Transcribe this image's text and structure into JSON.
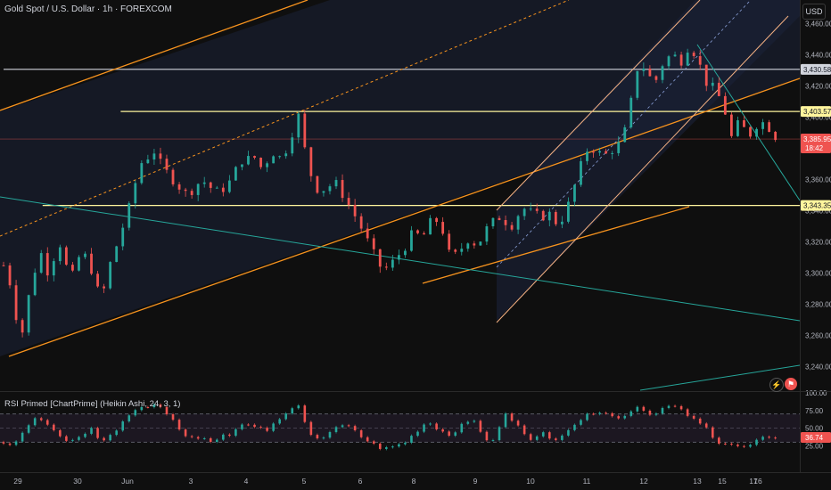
{
  "header": {
    "title": "Gold Spot / U.S. Dollar · 1h · FOREXCOM",
    "currency": "USD"
  },
  "rsi_header": {
    "title": "RSI Primed [ChartPrime] (Heikin Ashi, 24, 3, 1)"
  },
  "colors": {
    "background": "#0f0f0f",
    "up": "#26a69a",
    "down": "#ef5350",
    "orange": "#f7931e",
    "light_orange": "#f4b183",
    "yellow_line": "#fff59d",
    "white_line": "#d1d4dc",
    "teal_line": "#26a69a",
    "channel_fill": "#1b2238",
    "price_line": "#ef5350"
  },
  "icons": [
    "lightning-icon",
    "flag-icon"
  ],
  "chart_data": [
    {
      "type": "candlestick",
      "ylim": [
        3225,
        3475
      ],
      "y_ticks": [
        "3,460.00",
        "3,440.00",
        "3,420.00",
        "3,400.00",
        "3,380.00",
        "3,360.00",
        "3,340.00",
        "3,320.00",
        "3,300.00",
        "3,280.00",
        "3,260.00",
        "3,240.00"
      ],
      "x_ticks": [
        "29",
        "30",
        "Jun",
        "3",
        "4",
        "5",
        "6",
        "8",
        "9",
        "10",
        "11",
        "12",
        "13",
        "15",
        "16",
        "17"
      ],
      "price_labels": [
        {
          "text": "3,430.58",
          "value": 3430.58,
          "style": "white"
        },
        {
          "text": "3,403.57",
          "value": 3403.57,
          "style": "yellow"
        },
        {
          "text": "3,385.95",
          "sub": "18:42",
          "value": 3385.95,
          "style": "red"
        },
        {
          "text": "3,343.35",
          "value": 3343.35,
          "style": "yellow"
        }
      ],
      "horizontal_levels": [
        {
          "value": 3430.58,
          "color": "white",
          "from_index": 0
        },
        {
          "value": 3403.57,
          "color": "yellow",
          "from_index": 84
        },
        {
          "value": 3343.35,
          "color": "yellow",
          "from_index": 28
        }
      ],
      "close_path": [
        [
          0,
          3305
        ],
        [
          6,
          3290
        ],
        [
          12,
          3255
        ],
        [
          18,
          3285
        ],
        [
          26,
          3315
        ],
        [
          32,
          3300
        ],
        [
          40,
          3320
        ],
        [
          48,
          3295
        ],
        [
          56,
          3315
        ],
        [
          62,
          3305
        ],
        [
          70,
          3282
        ],
        [
          76,
          3305
        ],
        [
          82,
          3320
        ],
        [
          90,
          3342
        ],
        [
          98,
          3370
        ],
        [
          108,
          3378
        ],
        [
          114,
          3368
        ],
        [
          124,
          3357
        ],
        [
          132,
          3350
        ],
        [
          142,
          3360
        ],
        [
          152,
          3352
        ],
        [
          160,
          3355
        ],
        [
          170,
          3372
        ],
        [
          180,
          3374
        ],
        [
          186,
          3366
        ],
        [
          192,
          3378
        ],
        [
          200,
          3373
        ],
        [
          212,
          3402
        ],
        [
          218,
          3368
        ],
        [
          226,
          3352
        ],
        [
          238,
          3358
        ],
        [
          250,
          3340
        ],
        [
          256,
          3330
        ],
        [
          264,
          3315
        ],
        [
          272,
          3301
        ],
        [
          280,
          3308
        ],
        [
          288,
          3317
        ],
        [
          294,
          3327
        ],
        [
          300,
          3322
        ],
        [
          308,
          3336
        ],
        [
          314,
          3330
        ],
        [
          320,
          3311
        ],
        [
          326,
          3312
        ],
        [
          332,
          3322
        ],
        [
          340,
          3318
        ],
        [
          348,
          3331
        ],
        [
          356,
          3336
        ],
        [
          364,
          3330
        ],
        [
          372,
          3342
        ],
        [
          380,
          3338
        ],
        [
          386,
          3336
        ],
        [
          392,
          3338
        ],
        [
          398,
          3330
        ],
        [
          406,
          3346
        ],
        [
          414,
          3369
        ],
        [
          420,
          3382
        ],
        [
          426,
          3377
        ],
        [
          432,
          3376
        ],
        [
          438,
          3380
        ],
        [
          444,
          3385
        ],
        [
          450,
          3410
        ],
        [
          456,
          3438
        ],
        [
          462,
          3426
        ],
        [
          468,
          3424
        ],
        [
          474,
          3437
        ],
        [
          480,
          3440
        ],
        [
          486,
          3436
        ],
        [
          492,
          3447
        ],
        [
          498,
          3436
        ],
        [
          504,
          3422
        ],
        [
          510,
          3418
        ],
        [
          516,
          3408
        ],
        [
          522,
          3387
        ],
        [
          528,
          3398
        ],
        [
          534,
          3387
        ],
        [
          540,
          3395
        ],
        [
          546,
          3397
        ],
        [
          552,
          3389
        ],
        [
          555,
          3386
        ]
      ],
      "rsi": {
        "ylim": [
          0,
          100
        ],
        "y_ticks": [
          "100.00",
          "75.00",
          "50.00",
          "25.00"
        ],
        "levels": [
          70,
          50,
          30
        ],
        "current": "36.74",
        "path": [
          [
            0,
            30
          ],
          [
            6,
            26
          ],
          [
            12,
            40
          ],
          [
            18,
            55
          ],
          [
            24,
            65
          ],
          [
            30,
            58
          ],
          [
            36,
            45
          ],
          [
            42,
            35
          ],
          [
            48,
            30
          ],
          [
            56,
            40
          ],
          [
            64,
            50
          ],
          [
            70,
            28
          ],
          [
            76,
            40
          ],
          [
            82,
            48
          ],
          [
            90,
            70
          ],
          [
            98,
            80
          ],
          [
            108,
            82
          ],
          [
            114,
            78
          ],
          [
            124,
            55
          ],
          [
            132,
            35
          ],
          [
            142,
            38
          ],
          [
            150,
            30
          ],
          [
            156,
            42
          ],
          [
            162,
            38
          ],
          [
            170,
            58
          ],
          [
            180,
            52
          ],
          [
            190,
            48
          ],
          [
            196,
            60
          ],
          [
            204,
            72
          ],
          [
            212,
            85
          ],
          [
            218,
            42
          ],
          [
            226,
            32
          ],
          [
            238,
            52
          ],
          [
            248,
            52
          ],
          [
            256,
            38
          ],
          [
            264,
            28
          ],
          [
            272,
            20
          ],
          [
            280,
            24
          ],
          [
            288,
            30
          ],
          [
            296,
            45
          ],
          [
            304,
            60
          ],
          [
            312,
            48
          ],
          [
            320,
            40
          ],
          [
            330,
            56
          ],
          [
            338,
            62
          ],
          [
            346,
            30
          ],
          [
            352,
            35
          ],
          [
            360,
            70
          ],
          [
            370,
            50
          ],
          [
            378,
            35
          ],
          [
            386,
            45
          ],
          [
            394,
            28
          ],
          [
            402,
            45
          ],
          [
            412,
            60
          ],
          [
            422,
            72
          ],
          [
            430,
            75
          ],
          [
            440,
            62
          ],
          [
            450,
            75
          ],
          [
            456,
            82
          ],
          [
            464,
            68
          ],
          [
            472,
            78
          ],
          [
            480,
            82
          ],
          [
            488,
            72
          ],
          [
            496,
            60
          ],
          [
            504,
            50
          ],
          [
            512,
            30
          ],
          [
            520,
            28
          ],
          [
            528,
            22
          ],
          [
            536,
            25
          ],
          [
            542,
            34
          ],
          [
            548,
            38
          ],
          [
            555,
            37
          ]
        ]
      }
    }
  ]
}
